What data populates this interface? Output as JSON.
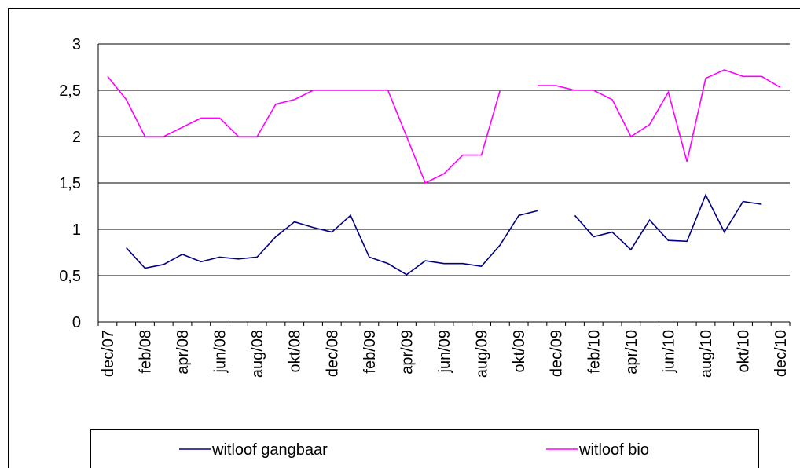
{
  "chart_data": {
    "type": "line",
    "categories": [
      "dec/07",
      null,
      "feb/08",
      null,
      "apr/08",
      null,
      "jun/08",
      null,
      "aug/08",
      null,
      "okt/08",
      null,
      "dec/08",
      null,
      "feb/09",
      null,
      "apr/09",
      null,
      "jun/09",
      null,
      "aug/09",
      null,
      "okt/09",
      null,
      "dec/09",
      null,
      "feb/10",
      null,
      "apr/10",
      null,
      "jun/10",
      null,
      "aug/10",
      null,
      "okt/10",
      null,
      "dec/10"
    ],
    "series": [
      {
        "name": "witloof gangbaar",
        "color": "#000080",
        "values": [
          null,
          0.8,
          0.58,
          0.62,
          0.73,
          0.65,
          0.7,
          0.68,
          0.7,
          0.92,
          1.08,
          1.02,
          0.97,
          1.15,
          0.7,
          0.63,
          0.51,
          0.66,
          0.63,
          0.63,
          0.6,
          0.83,
          1.15,
          1.2,
          null,
          1.15,
          0.92,
          0.97,
          0.78,
          1.1,
          0.88,
          0.87,
          1.37,
          0.97,
          1.3,
          1.27,
          null
        ]
      },
      {
        "name": "witloof bio",
        "color": "#ff00ff",
        "values": [
          2.65,
          2.4,
          2.0,
          2.0,
          2.1,
          2.2,
          2.2,
          2.0,
          2.0,
          2.35,
          2.4,
          2.5,
          2.5,
          2.5,
          2.5,
          2.5,
          2.0,
          1.5,
          1.6,
          1.8,
          1.8,
          2.5,
          null,
          2.55,
          2.55,
          2.5,
          2.5,
          2.4,
          2.0,
          2.13,
          2.48,
          1.73,
          2.63,
          2.72,
          2.65,
          2.65,
          2.53
        ]
      }
    ],
    "ylim": [
      0,
      3
    ],
    "yticks": [
      0,
      {
        "value": 0.5,
        "label": "0,5"
      },
      1,
      {
        "value": 1.5,
        "label": "1,5"
      },
      2,
      {
        "value": 2.5,
        "label": "2,5"
      },
      3
    ],
    "grid": true,
    "legend": "bottom"
  }
}
